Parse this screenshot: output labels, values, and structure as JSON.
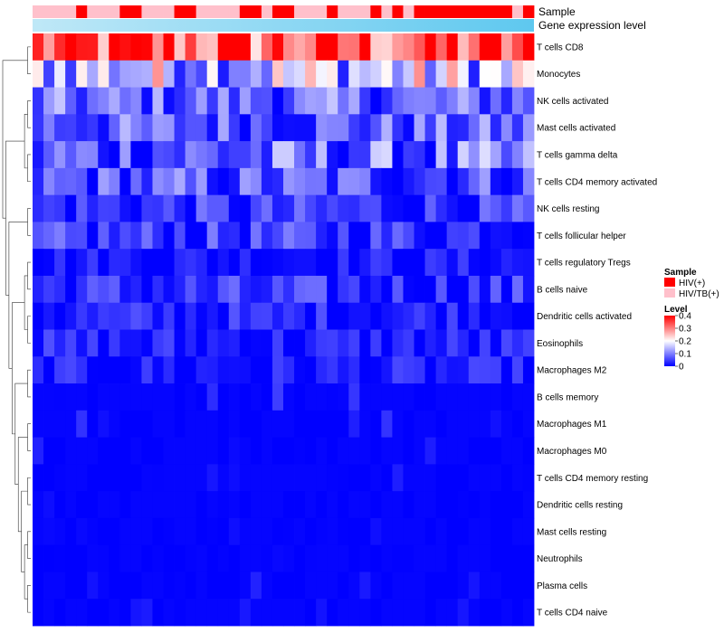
{
  "chart_data": {
    "type": "heatmap",
    "title": "",
    "annotations": [
      {
        "name": "Sample",
        "kind": "categorical"
      },
      {
        "name": "Gene expression level",
        "kind": "gradient",
        "from": "#bfe8f7",
        "to": "#5ec8ef"
      }
    ],
    "sample_groups": [
      {
        "label": "HIV(+)",
        "color": "#ff0000"
      },
      {
        "label": "HIV/TB(+)",
        "color": "#ffc0cb"
      }
    ],
    "sample_annotation": [
      1,
      1,
      1,
      1,
      0,
      1,
      1,
      1,
      0,
      0,
      1,
      1,
      1,
      0,
      0,
      1,
      1,
      1,
      1,
      0,
      0,
      1,
      0,
      0,
      1,
      1,
      1,
      0,
      1,
      1,
      1,
      0,
      1,
      0,
      1,
      0,
      0,
      0,
      0,
      0,
      0,
      0,
      0,
      0,
      1,
      0
    ],
    "rows": [
      "T cells CD8",
      "Monocytes",
      "NK cells activated",
      "Mast cells activated",
      "T cells gamma delta",
      "T cells CD4 memory activated",
      "NK cells resting",
      "T cells follicular helper",
      "T cells regulatory  Tregs",
      "B cells naive",
      "Dendritic cells activated",
      "Eosinophils",
      "Macrophages M2",
      "B cells memory",
      "Macrophages M1",
      "Macrophages M0",
      "T cells CD4 memory resting",
      "Dendritic cells resting",
      "Mast cells resting",
      "Neutrophils",
      "Plasma cells",
      "T cells CD4 naive"
    ],
    "n_columns": 46,
    "row_base_levels": [
      0.33,
      0.16,
      0.075,
      0.07,
      0.065,
      0.06,
      0.035,
      0.04,
      0.018,
      0.03,
      0.025,
      0.02,
      0.017,
      0.015,
      0.012,
      0.01,
      0.006,
      0.005,
      0.003,
      0.002,
      0.006,
      0.005
    ],
    "row_spread": [
      0.14,
      0.14,
      0.08,
      0.08,
      0.11,
      0.08,
      0.06,
      0.06,
      0.035,
      0.06,
      0.045,
      0.045,
      0.04,
      0.04,
      0.035,
      0.035,
      0.02,
      0.015,
      0.01,
      0.006,
      0.03,
      0.025
    ],
    "legend": {
      "sample_title": "Sample",
      "level_title": "Level",
      "level_range": [
        0,
        0.4
      ],
      "level_ticks": [
        0.4,
        0.3,
        0.2,
        0.1,
        0
      ],
      "level_tick_labels": [
        "0.4",
        "0.3",
        "0.2",
        "0.1",
        "0"
      ],
      "colors": {
        "low": "#0000ff",
        "mid": "#ffffff",
        "high": "#ff0000"
      }
    },
    "dendrogram": "row clustering tree on the left side"
  }
}
